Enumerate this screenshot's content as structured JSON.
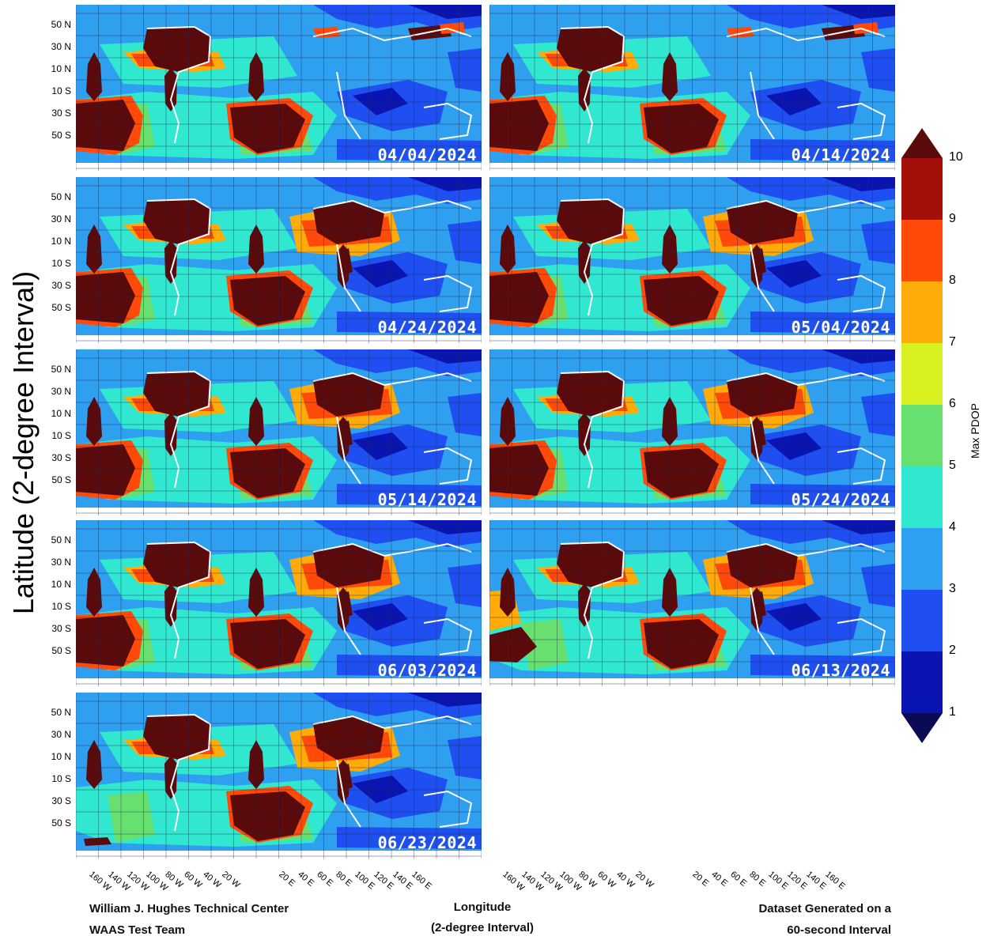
{
  "y_axis_title": "Latitude (2-degree Interval)",
  "lat_labels": [
    "50 N",
    "30 N",
    "10 N",
    "10 S",
    "30 S",
    "50 S"
  ],
  "lon_labels": [
    "160 W",
    "140 W",
    "120 W",
    "100 W",
    "80 W",
    "60 W",
    "40 W",
    "20 W",
    "20 E",
    "40 E",
    "60 E",
    "80 E",
    "100 E",
    "120 E",
    "140 E",
    "160 E"
  ],
  "panels": [
    {
      "date": "04/04/2024",
      "eurasia_level": "low",
      "sw_pacific": "full"
    },
    {
      "date": "04/14/2024",
      "eurasia_level": "low",
      "sw_pacific": "full"
    },
    {
      "date": "04/24/2024",
      "eurasia_level": "high",
      "sw_pacific": "full"
    },
    {
      "date": "05/04/2024",
      "eurasia_level": "high",
      "sw_pacific": "full"
    },
    {
      "date": "05/14/2024",
      "eurasia_level": "high",
      "sw_pacific": "full"
    },
    {
      "date": "05/24/2024",
      "eurasia_level": "high",
      "sw_pacific": "full"
    },
    {
      "date": "06/03/2024",
      "eurasia_level": "high",
      "sw_pacific": "full"
    },
    {
      "date": "06/13/2024",
      "eurasia_level": "high",
      "sw_pacific": "partial"
    },
    {
      "date": "06/23/2024",
      "eurasia_level": "high",
      "sw_pacific": "small"
    }
  ],
  "colorbar": {
    "title": "Max PDOP",
    "ticks": [
      "10",
      "9",
      "8",
      "7",
      "6",
      "5",
      "4",
      "3",
      "2",
      "1"
    ],
    "colors": {
      "9-10": "#a50f0a",
      "8-9": "#ff4a0a",
      "7-8": "#ffac0a",
      "6-7": "#d8f020",
      "5-6": "#68e070",
      "4-5": "#30e8d0",
      "3-4": "#2f9fef",
      "2-3": "#1f4ff0",
      "1-2": "#0a14b0",
      "above": "#5a0a0a",
      "below": "#0a0a55"
    }
  },
  "footer": {
    "left_line1": "William J. Hughes Technical Center",
    "left_line2": "WAAS Test Team",
    "center_line1": "Longitude",
    "center_line2": "(2-degree Interval)",
    "right_line1": "Dataset Generated on a",
    "right_line2": "60-second Interval"
  }
}
